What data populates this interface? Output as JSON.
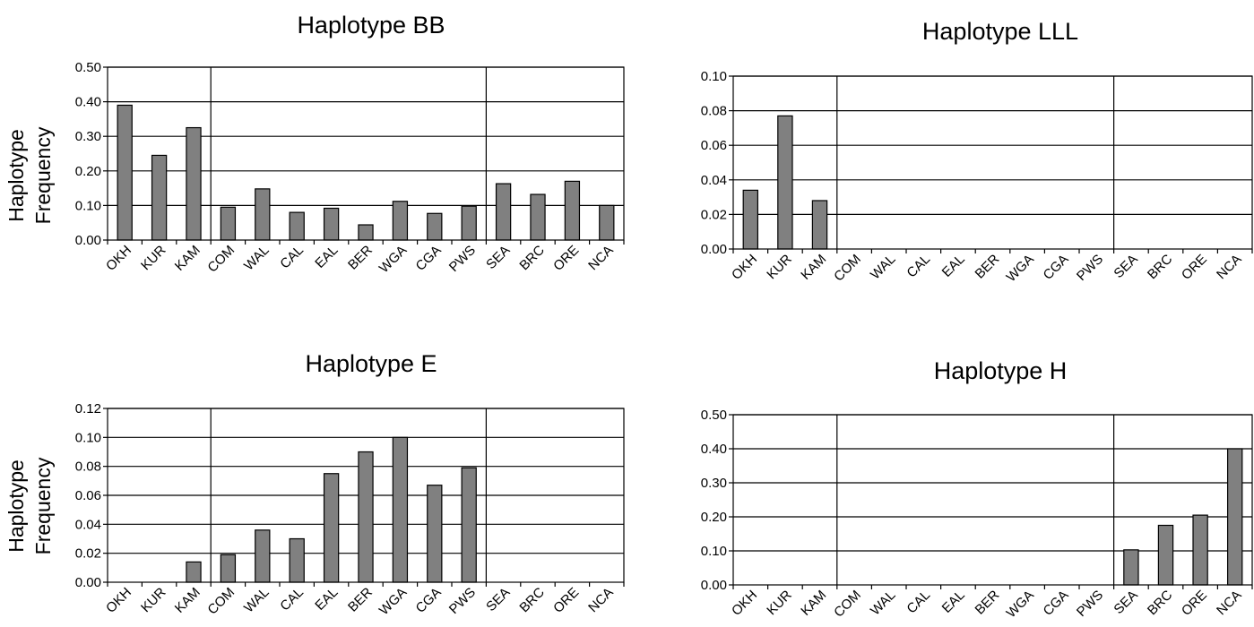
{
  "figure": {
    "ylabel_lines": [
      "Haplotype",
      "Frequency"
    ]
  },
  "chart_data": [
    {
      "type": "bar",
      "title": "Haplotype BB",
      "ylabel": "Haplotype Frequency",
      "categories": [
        "OKH",
        "KUR",
        "KAM",
        "COM",
        "WAL",
        "CAL",
        "EAL",
        "BER",
        "WGA",
        "CGA",
        "PWS",
        "SEA",
        "BRC",
        "ORE",
        "NCA"
      ],
      "values": [
        0.39,
        0.245,
        0.325,
        0.095,
        0.148,
        0.08,
        0.092,
        0.044,
        0.112,
        0.077,
        0.098,
        0.163,
        0.132,
        0.17,
        0.1
      ],
      "ylim": [
        0,
        0.5
      ],
      "yticks": [
        "0.00",
        "0.10",
        "0.20",
        "0.30",
        "0.40",
        "0.50"
      ],
      "region_dividers_after": [
        3,
        11
      ],
      "grid": true
    },
    {
      "type": "bar",
      "title": "Haplotype LLL",
      "ylabel": "",
      "categories": [
        "OKH",
        "KUR",
        "KAM",
        "COM",
        "WAL",
        "CAL",
        "EAL",
        "BER",
        "WGA",
        "CGA",
        "PWS",
        "SEA",
        "BRC",
        "ORE",
        "NCA"
      ],
      "values": [
        0.034,
        0.077,
        0.028,
        0,
        0,
        0,
        0,
        0,
        0,
        0,
        0,
        0,
        0,
        0,
        0
      ],
      "ylim": [
        0,
        0.1
      ],
      "yticks": [
        "0.00",
        "0.02",
        "0.04",
        "0.06",
        "0.08",
        "0.10"
      ],
      "region_dividers_after": [
        3,
        11
      ],
      "grid": true
    },
    {
      "type": "bar",
      "title": "Haplotype E",
      "ylabel": "Haplotype Frequency",
      "categories": [
        "OKH",
        "KUR",
        "KAM",
        "COM",
        "WAL",
        "CAL",
        "EAL",
        "BER",
        "WGA",
        "CGA",
        "PWS",
        "SEA",
        "BRC",
        "ORE",
        "NCA"
      ],
      "values": [
        0,
        0,
        0.014,
        0.019,
        0.036,
        0.03,
        0.075,
        0.09,
        0.1,
        0.067,
        0.079,
        0,
        0,
        0,
        0
      ],
      "ylim": [
        0,
        0.12
      ],
      "yticks": [
        "0.00",
        "0.02",
        "0.04",
        "0.06",
        "0.08",
        "0.10",
        "0.12"
      ],
      "region_dividers_after": [
        3,
        11
      ],
      "grid": true
    },
    {
      "type": "bar",
      "title": "Haplotype H",
      "ylabel": "",
      "categories": [
        "OKH",
        "KUR",
        "KAM",
        "COM",
        "WAL",
        "CAL",
        "EAL",
        "BER",
        "WGA",
        "CGA",
        "PWS",
        "SEA",
        "BRC",
        "ORE",
        "NCA"
      ],
      "values": [
        0,
        0,
        0,
        0,
        0,
        0,
        0,
        0,
        0,
        0,
        0,
        0.103,
        0.175,
        0.205,
        0.4
      ],
      "ylim": [
        0,
        0.5
      ],
      "yticks": [
        "0.00",
        "0.10",
        "0.20",
        "0.30",
        "0.40",
        "0.50"
      ],
      "region_dividers_after": [
        3,
        11
      ],
      "grid": true
    }
  ],
  "colors": {
    "bar_fill": "#808080",
    "bar_stroke": "#000000",
    "axis": "#000000"
  }
}
